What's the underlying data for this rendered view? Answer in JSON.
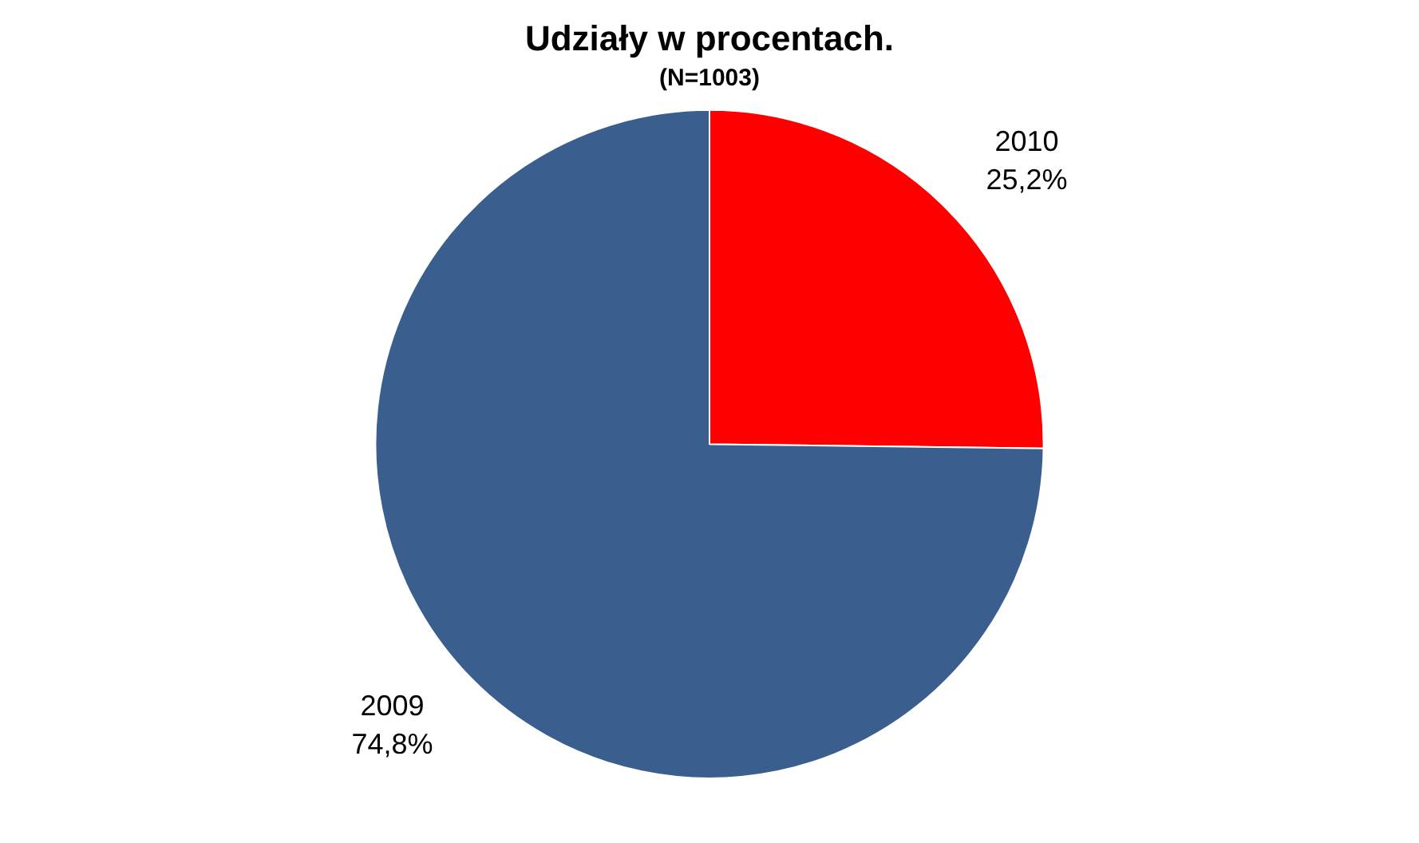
{
  "chart_data": {
    "type": "pie",
    "title": "Udziały w procentach.",
    "subtitle": "(N=1003)",
    "categories": [
      "2010",
      "2009"
    ],
    "values": [
      25.2,
      74.8
    ],
    "colors": [
      "#ff0000",
      "#3a5f8f"
    ],
    "value_labels": [
      "25,2%",
      "74,8%"
    ],
    "legend": false
  }
}
